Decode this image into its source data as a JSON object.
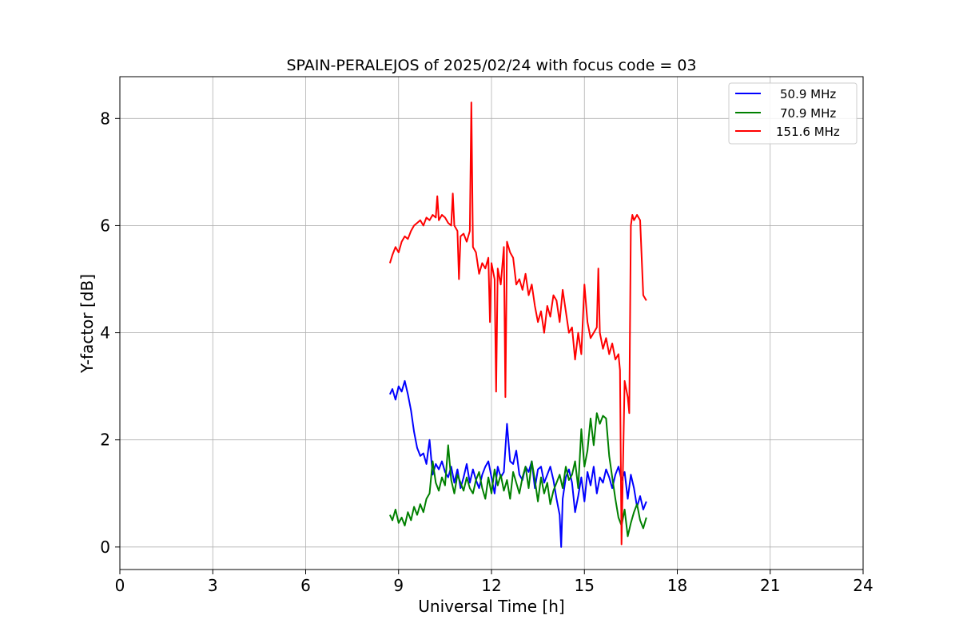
{
  "chart_data": {
    "type": "line",
    "title": "SPAIN-PERALEJOS of 2025/02/24 with focus code = 03",
    "xlabel": "Universal Time [h]",
    "ylabel": "Y-factor [dB]",
    "xlim": [
      0,
      24
    ],
    "ylim": [
      -0.42,
      8.78
    ],
    "xticks": [
      0,
      3,
      6,
      9,
      12,
      15,
      18,
      21,
      24
    ],
    "yticks": [
      0,
      2,
      4,
      6,
      8
    ],
    "grid": true,
    "legend_position": "top-right",
    "colors": {
      "50.9 MHz": "#0000ff",
      "70.9 MHz": "#008000",
      "151.6 MHz": "#ff0000"
    },
    "series": [
      {
        "name": "50.9 MHz",
        "color": "#0000ff",
        "x": [
          8.72,
          8.8,
          8.9,
          9.0,
          9.1,
          9.2,
          9.3,
          9.4,
          9.5,
          9.6,
          9.7,
          9.8,
          9.9,
          10.0,
          10.1,
          10.2,
          10.3,
          10.4,
          10.5,
          10.6,
          10.7,
          10.8,
          10.9,
          11.0,
          11.1,
          11.2,
          11.3,
          11.4,
          11.5,
          11.6,
          11.7,
          11.8,
          11.9,
          12.0,
          12.1,
          12.2,
          12.3,
          12.4,
          12.5,
          12.6,
          12.7,
          12.8,
          12.9,
          13.0,
          13.1,
          13.2,
          13.3,
          13.4,
          13.5,
          13.6,
          13.7,
          13.8,
          13.9,
          14.0,
          14.1,
          14.2,
          14.25,
          14.3,
          14.4,
          14.5,
          14.6,
          14.7,
          14.8,
          14.9,
          15.0,
          15.1,
          15.2,
          15.3,
          15.4,
          15.5,
          15.6,
          15.7,
          15.8,
          15.9,
          16.0,
          16.1,
          16.2,
          16.3,
          16.4,
          16.5,
          16.6,
          16.7,
          16.8,
          16.9,
          17.0
        ],
        "y": [
          2.85,
          2.95,
          2.75,
          3.0,
          2.9,
          3.1,
          2.85,
          2.55,
          2.15,
          1.85,
          1.7,
          1.75,
          1.55,
          2.0,
          1.35,
          1.55,
          1.45,
          1.6,
          1.4,
          1.3,
          1.5,
          1.2,
          1.45,
          1.1,
          1.3,
          1.55,
          1.2,
          1.45,
          1.25,
          1.1,
          1.35,
          1.5,
          1.6,
          1.3,
          1.0,
          1.5,
          1.3,
          1.4,
          2.3,
          1.6,
          1.55,
          1.8,
          1.35,
          1.25,
          1.5,
          1.4,
          1.6,
          1.1,
          1.45,
          1.5,
          1.2,
          1.35,
          1.5,
          1.25,
          0.9,
          0.6,
          0.0,
          0.9,
          1.3,
          1.45,
          1.2,
          0.65,
          0.95,
          1.3,
          0.85,
          1.4,
          1.15,
          1.5,
          1.0,
          1.3,
          1.2,
          1.45,
          1.3,
          1.1,
          1.35,
          1.5,
          1.25,
          1.4,
          0.9,
          1.35,
          1.1,
          0.75,
          0.95,
          0.7,
          0.85
        ]
      },
      {
        "name": "70.9 MHz",
        "color": "#008000",
        "x": [
          8.72,
          8.8,
          8.9,
          9.0,
          9.1,
          9.2,
          9.3,
          9.4,
          9.5,
          9.6,
          9.7,
          9.8,
          9.9,
          10.0,
          10.1,
          10.2,
          10.3,
          10.4,
          10.5,
          10.6,
          10.7,
          10.8,
          10.9,
          11.0,
          11.1,
          11.2,
          11.3,
          11.4,
          11.5,
          11.6,
          11.7,
          11.8,
          11.9,
          12.0,
          12.1,
          12.2,
          12.3,
          12.4,
          12.5,
          12.6,
          12.7,
          12.8,
          12.9,
          13.0,
          13.1,
          13.2,
          13.3,
          13.4,
          13.5,
          13.6,
          13.7,
          13.8,
          13.9,
          14.0,
          14.1,
          14.2,
          14.3,
          14.4,
          14.5,
          14.6,
          14.7,
          14.8,
          14.9,
          15.0,
          15.1,
          15.2,
          15.3,
          15.4,
          15.5,
          15.6,
          15.7,
          15.8,
          15.9,
          16.0,
          16.1,
          16.2,
          16.3,
          16.4,
          16.5,
          16.6,
          16.7,
          16.8,
          16.9,
          17.0
        ],
        "y": [
          0.6,
          0.5,
          0.7,
          0.45,
          0.55,
          0.4,
          0.65,
          0.5,
          0.75,
          0.6,
          0.8,
          0.65,
          0.9,
          1.0,
          1.6,
          1.2,
          1.05,
          1.3,
          1.15,
          1.9,
          1.25,
          1.0,
          1.35,
          1.2,
          1.05,
          1.3,
          1.1,
          1.0,
          1.25,
          1.4,
          1.1,
          0.9,
          1.3,
          1.0,
          1.45,
          1.15,
          1.35,
          1.05,
          1.25,
          0.9,
          1.4,
          1.2,
          1.0,
          1.3,
          1.5,
          1.1,
          1.6,
          1.25,
          0.85,
          1.3,
          1.0,
          1.2,
          0.8,
          1.05,
          1.2,
          1.35,
          1.1,
          1.5,
          1.25,
          1.35,
          1.6,
          1.1,
          2.2,
          1.5,
          1.8,
          2.4,
          1.9,
          2.5,
          2.3,
          2.45,
          2.4,
          1.7,
          1.3,
          0.9,
          0.55,
          0.4,
          0.7,
          0.2,
          0.45,
          0.65,
          0.8,
          0.5,
          0.35,
          0.55
        ]
      },
      {
        "name": "151.6 MHz",
        "color": "#ff0000",
        "x": [
          8.72,
          8.8,
          8.9,
          9.0,
          9.1,
          9.2,
          9.3,
          9.4,
          9.5,
          9.6,
          9.7,
          9.8,
          9.9,
          10.0,
          10.1,
          10.2,
          10.25,
          10.3,
          10.4,
          10.5,
          10.6,
          10.7,
          10.75,
          10.8,
          10.9,
          10.95,
          11.0,
          11.1,
          11.2,
          11.3,
          11.35,
          11.4,
          11.5,
          11.6,
          11.7,
          11.8,
          11.9,
          11.95,
          12.0,
          12.1,
          12.15,
          12.2,
          12.3,
          12.4,
          12.45,
          12.5,
          12.6,
          12.7,
          12.8,
          12.9,
          13.0,
          13.1,
          13.2,
          13.3,
          13.4,
          13.5,
          13.6,
          13.7,
          13.8,
          13.9,
          14.0,
          14.1,
          14.2,
          14.3,
          14.4,
          14.5,
          14.6,
          14.7,
          14.8,
          14.9,
          15.0,
          15.1,
          15.2,
          15.3,
          15.4,
          15.45,
          15.5,
          15.6,
          15.7,
          15.8,
          15.9,
          16.0,
          16.1,
          16.15,
          16.2,
          16.3,
          16.4,
          16.45,
          16.5,
          16.55,
          16.6,
          16.7,
          16.8,
          16.9,
          17.0
        ],
        "y": [
          5.3,
          5.45,
          5.6,
          5.5,
          5.7,
          5.8,
          5.75,
          5.9,
          6.0,
          6.05,
          6.1,
          6.0,
          6.15,
          6.1,
          6.2,
          6.15,
          6.55,
          6.1,
          6.2,
          6.15,
          6.05,
          6.0,
          6.6,
          6.0,
          5.9,
          5.0,
          5.8,
          5.85,
          5.7,
          5.9,
          8.3,
          5.6,
          5.5,
          5.1,
          5.3,
          5.2,
          5.4,
          4.2,
          5.3,
          5.0,
          2.9,
          5.2,
          4.9,
          5.6,
          2.8,
          5.7,
          5.5,
          5.4,
          4.9,
          5.0,
          4.8,
          5.1,
          4.7,
          4.9,
          4.5,
          4.2,
          4.4,
          4.0,
          4.5,
          4.3,
          4.7,
          4.6,
          4.2,
          4.8,
          4.4,
          4.0,
          4.1,
          3.5,
          4.0,
          3.6,
          4.9,
          4.2,
          3.9,
          4.0,
          4.1,
          5.2,
          4.0,
          3.7,
          3.9,
          3.6,
          3.8,
          3.5,
          3.6,
          3.3,
          0.05,
          3.1,
          2.8,
          2.5,
          6.0,
          6.2,
          6.1,
          6.2,
          6.1,
          4.7,
          4.6
        ]
      }
    ]
  }
}
